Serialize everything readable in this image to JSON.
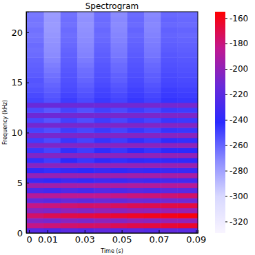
{
  "chart_data": {
    "type": "heatmap",
    "title": "Spectrogram",
    "x_label": "Time (s)",
    "y_label": "Frequency (kHz)",
    "x_edges": [
      -0.0015,
      0.008,
      0.017,
      0.026,
      0.035,
      0.044,
      0.053,
      0.062,
      0.071,
      0.08,
      0.091
    ],
    "y_edges": [
      0,
      0.5,
      1,
      1.5,
      2,
      2.5,
      3,
      3.5,
      4,
      4.5,
      5,
      5.5,
      6,
      6.5,
      7,
      7.5,
      8,
      8.5,
      9,
      9.5,
      10,
      10.5,
      11,
      11.5,
      12,
      12.5,
      13,
      13.5,
      14,
      14.5,
      15,
      15.5,
      16,
      16.5,
      17,
      17.5,
      18,
      18.5,
      19,
      19.5,
      20,
      20.5,
      21,
      21.5,
      22.05
    ],
    "cells": [
      [
        -222,
        -226,
        -220,
        -224,
        -218,
        -221,
        -219,
        -223,
        -217,
        -220
      ],
      [
        -182,
        -179,
        -177,
        -175,
        -176,
        -172,
        -170,
        -168,
        -166,
        -164
      ],
      [
        -206,
        -210,
        -204,
        -208,
        -202,
        -205,
        -200,
        -203,
        -198,
        -200
      ],
      [
        -176,
        -172,
        -170,
        -168,
        -167,
        -165,
        -163,
        -161,
        -160,
        -158
      ],
      [
        -204,
        -208,
        -202,
        -206,
        -200,
        -203,
        -199,
        -201,
        -197,
        -198
      ],
      [
        -182,
        -180,
        -178,
        -176,
        -177,
        -174,
        -172,
        -171,
        -169,
        -168
      ],
      [
        -218,
        -222,
        -216,
        -220,
        -214,
        -217,
        -213,
        -215,
        -211,
        -212
      ],
      [
        -188,
        -187,
        -185,
        -184,
        -184,
        -182,
        -180,
        -179,
        -178,
        -176
      ],
      [
        -228,
        -232,
        -226,
        -230,
        -224,
        -227,
        -223,
        -226,
        -221,
        -222
      ],
      [
        -196,
        -195,
        -194,
        -193,
        -192,
        -191,
        -190,
        -189,
        -188,
        -187
      ],
      [
        -236,
        -240,
        -234,
        -238,
        -232,
        -235,
        -231,
        -234,
        -230,
        -231
      ],
      [
        -200,
        -199,
        -198,
        -197,
        -197,
        -196,
        -195,
        -194,
        -193,
        -192
      ],
      [
        -240,
        -244,
        -238,
        -242,
        -236,
        -240,
        -236,
        -239,
        -235,
        -236
      ],
      [
        -204,
        -203,
        -202,
        -202,
        -201,
        -200,
        -200,
        -199,
        -198,
        -197
      ],
      [
        -244,
        -248,
        -242,
        -246,
        -240,
        -244,
        -240,
        -243,
        -239,
        -240
      ],
      [
        -206,
        -205,
        -205,
        -204,
        -203,
        -203,
        -202,
        -201,
        -200,
        -200
      ],
      [
        -246,
        -250,
        -244,
        -248,
        -243,
        -246,
        -242,
        -245,
        -241,
        -242
      ],
      [
        -207,
        -207,
        -206,
        -205,
        -205,
        -204,
        -203,
        -203,
        -202,
        -201
      ],
      [
        -248,
        -252,
        -246,
        -250,
        -245,
        -248,
        -244,
        -247,
        -243,
        -244
      ],
      [
        -209,
        -209,
        -208,
        -207,
        -207,
        -206,
        -205,
        -205,
        -204,
        -203
      ],
      [
        -250,
        -253,
        -248,
        -251,
        -247,
        -250,
        -246,
        -249,
        -245,
        -246
      ],
      [
        -210,
        -210,
        -209,
        -209,
        -208,
        -207,
        -207,
        -206,
        -205,
        -205
      ],
      [
        -251,
        -255,
        -249,
        -253,
        -248,
        -251,
        -247,
        -250,
        -246,
        -247
      ],
      [
        -212,
        -212,
        -211,
        -210,
        -210,
        -209,
        -209,
        -208,
        -207,
        -207
      ],
      [
        -252,
        -256,
        -250,
        -254,
        -249,
        -252,
        -248,
        -251,
        -247,
        -248
      ],
      [
        -214,
        -214,
        -213,
        -213,
        -212,
        -212,
        -211,
        -210,
        -210,
        -209
      ],
      [
        -250,
        -254,
        -248,
        -252,
        -247,
        -250,
        -246,
        -249,
        -245,
        -246
      ],
      [
        -252,
        -256,
        -250,
        -254,
        -249,
        -252,
        -248,
        -251,
        -247,
        -248
      ],
      [
        -254,
        -258,
        -252,
        -256,
        -250,
        -254,
        -249,
        -253,
        -248,
        -249
      ],
      [
        -256,
        -260,
        -253,
        -258,
        -252,
        -256,
        -251,
        -255,
        -250,
        -251
      ],
      [
        -255,
        -262,
        -254,
        -260,
        -253,
        -258,
        -252,
        -257,
        -251,
        -252
      ],
      [
        -257,
        -264,
        -255,
        -262,
        -254,
        -259,
        -253,
        -258,
        -252,
        -253
      ],
      [
        -258,
        -266,
        -256,
        -263,
        -255,
        -261,
        -254,
        -260,
        -253,
        -254
      ],
      [
        -259,
        -268,
        -257,
        -265,
        -256,
        -262,
        -255,
        -261,
        -254,
        -255
      ],
      [
        -260,
        -270,
        -258,
        -267,
        -257,
        -264,
        -256,
        -263,
        -255,
        -256
      ],
      [
        -262,
        -272,
        -259,
        -269,
        -258,
        -266,
        -257,
        -265,
        -256,
        -257
      ],
      [
        -263,
        -273,
        -260,
        -270,
        -259,
        -267,
        -258,
        -266,
        -257,
        -258
      ],
      [
        -262,
        -274,
        -261,
        -271,
        -260,
        -268,
        -259,
        -267,
        -258,
        -259
      ],
      [
        -264,
        -275,
        -262,
        -272,
        -261,
        -269,
        -260,
        -268,
        -259,
        -260
      ],
      [
        -265,
        -276,
        -263,
        -273,
        -262,
        -270,
        -261,
        -269,
        -260,
        -261
      ],
      [
        -264,
        -277,
        -262,
        -274,
        -261,
        -271,
        -260,
        -270,
        -259,
        -260
      ],
      [
        -266,
        -278,
        -264,
        -275,
        -263,
        -272,
        -262,
        -271,
        -261,
        -262
      ],
      [
        -265,
        -277,
        -263,
        -274,
        -262,
        -271,
        -261,
        -270,
        -260,
        -261
      ],
      [
        -266,
        -278,
        -264,
        -275,
        -263,
        -272,
        -262,
        -271,
        -261,
        -262
      ]
    ],
    "xlim": [
      -0.0015,
      0.091
    ],
    "xticks": [
      0,
      0.01,
      0.03,
      0.05,
      0.07,
      0.09
    ],
    "ylim": [
      0,
      22.05
    ],
    "yticks": [
      0,
      5,
      10,
      15,
      20
    ],
    "colorbar": {
      "range": [
        -329,
        -155
      ],
      "ticks": [
        -320,
        -300,
        -280,
        -260,
        -240,
        -220,
        -200,
        -180,
        -160
      ]
    }
  }
}
